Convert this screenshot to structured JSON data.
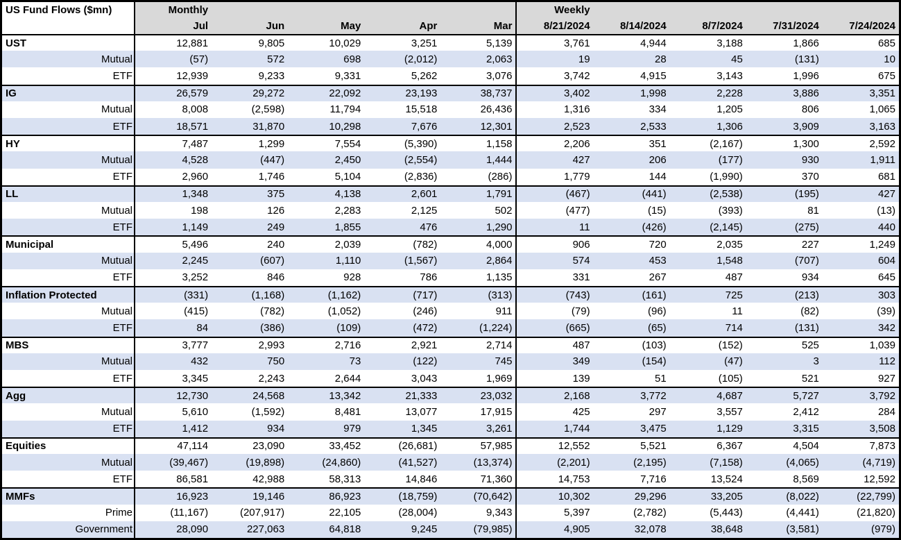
{
  "title": "US Fund Flows ($mn)",
  "colors": {
    "stripe": "#D9E1F2",
    "header_bg": "#D9D9D9",
    "border": "#000000"
  },
  "header": {
    "monthly_label": "Monthly",
    "weekly_label": "Weekly",
    "monthly_columns": [
      "Jul",
      "Jun",
      "May",
      "Apr",
      "Mar"
    ],
    "weekly_columns": [
      "8/21/2024",
      "8/14/2024",
      "8/7/2024",
      "7/31/2024",
      "7/24/2024"
    ]
  },
  "sections": [
    {
      "name": "UST",
      "rows": [
        {
          "label": "UST",
          "bold": true,
          "monthly": [
            "12,881",
            "9,805",
            "10,029",
            "3,251",
            "5,139"
          ],
          "weekly": [
            "3,761",
            "4,944",
            "3,188",
            "1,866",
            "685"
          ]
        },
        {
          "label": "Mutual",
          "bold": false,
          "monthly": [
            "(57)",
            "572",
            "698",
            "(2,012)",
            "2,063"
          ],
          "weekly": [
            "19",
            "28",
            "45",
            "(131)",
            "10"
          ]
        },
        {
          "label": "ETF",
          "bold": false,
          "monthly": [
            "12,939",
            "9,233",
            "9,331",
            "5,262",
            "3,076"
          ],
          "weekly": [
            "3,742",
            "4,915",
            "3,143",
            "1,996",
            "675"
          ]
        }
      ]
    },
    {
      "name": "IG",
      "rows": [
        {
          "label": "IG",
          "bold": true,
          "monthly": [
            "26,579",
            "29,272",
            "22,092",
            "23,193",
            "38,737"
          ],
          "weekly": [
            "3,402",
            "1,998",
            "2,228",
            "3,886",
            "3,351"
          ]
        },
        {
          "label": "Mutual",
          "bold": false,
          "monthly": [
            "8,008",
            "(2,598)",
            "11,794",
            "15,518",
            "26,436"
          ],
          "weekly": [
            "1,316",
            "334",
            "1,205",
            "806",
            "1,065"
          ]
        },
        {
          "label": "ETF",
          "bold": false,
          "monthly": [
            "18,571",
            "31,870",
            "10,298",
            "7,676",
            "12,301"
          ],
          "weekly": [
            "2,523",
            "2,533",
            "1,306",
            "3,909",
            "3,163"
          ]
        }
      ]
    },
    {
      "name": "HY",
      "rows": [
        {
          "label": "HY",
          "bold": true,
          "monthly": [
            "7,487",
            "1,299",
            "7,554",
            "(5,390)",
            "1,158"
          ],
          "weekly": [
            "2,206",
            "351",
            "(2,167)",
            "1,300",
            "2,592"
          ]
        },
        {
          "label": "Mutual",
          "bold": false,
          "monthly": [
            "4,528",
            "(447)",
            "2,450",
            "(2,554)",
            "1,444"
          ],
          "weekly": [
            "427",
            "206",
            "(177)",
            "930",
            "1,911"
          ]
        },
        {
          "label": "ETF",
          "bold": false,
          "monthly": [
            "2,960",
            "1,746",
            "5,104",
            "(2,836)",
            "(286)"
          ],
          "weekly": [
            "1,779",
            "144",
            "(1,990)",
            "370",
            "681"
          ]
        }
      ]
    },
    {
      "name": "LL",
      "rows": [
        {
          "label": "LL",
          "bold": true,
          "monthly": [
            "1,348",
            "375",
            "4,138",
            "2,601",
            "1,791"
          ],
          "weekly": [
            "(467)",
            "(441)",
            "(2,538)",
            "(195)",
            "427"
          ]
        },
        {
          "label": "Mutual",
          "bold": false,
          "monthly": [
            "198",
            "126",
            "2,283",
            "2,125",
            "502"
          ],
          "weekly": [
            "(477)",
            "(15)",
            "(393)",
            "81",
            "(13)"
          ]
        },
        {
          "label": "ETF",
          "bold": false,
          "monthly": [
            "1,149",
            "249",
            "1,855",
            "476",
            "1,290"
          ],
          "weekly": [
            "11",
            "(426)",
            "(2,145)",
            "(275)",
            "440"
          ]
        }
      ]
    },
    {
      "name": "Municipal",
      "rows": [
        {
          "label": "Municipal",
          "bold": true,
          "monthly": [
            "5,496",
            "240",
            "2,039",
            "(782)",
            "4,000"
          ],
          "weekly": [
            "906",
            "720",
            "2,035",
            "227",
            "1,249"
          ]
        },
        {
          "label": "Mutual",
          "bold": false,
          "monthly": [
            "2,245",
            "(607)",
            "1,110",
            "(1,567)",
            "2,864"
          ],
          "weekly": [
            "574",
            "453",
            "1,548",
            "(707)",
            "604"
          ]
        },
        {
          "label": "ETF",
          "bold": false,
          "monthly": [
            "3,252",
            "846",
            "928",
            "786",
            "1,135"
          ],
          "weekly": [
            "331",
            "267",
            "487",
            "934",
            "645"
          ]
        }
      ]
    },
    {
      "name": "Inflation Protected",
      "rows": [
        {
          "label": "Inflation Protected",
          "bold": true,
          "monthly": [
            "(331)",
            "(1,168)",
            "(1,162)",
            "(717)",
            "(313)"
          ],
          "weekly": [
            "(743)",
            "(161)",
            "725",
            "(213)",
            "303"
          ]
        },
        {
          "label": "Mutual",
          "bold": false,
          "monthly": [
            "(415)",
            "(782)",
            "(1,052)",
            "(246)",
            "911"
          ],
          "weekly": [
            "(79)",
            "(96)",
            "11",
            "(82)",
            "(39)"
          ]
        },
        {
          "label": "ETF",
          "bold": false,
          "monthly": [
            "84",
            "(386)",
            "(109)",
            "(472)",
            "(1,224)"
          ],
          "weekly": [
            "(665)",
            "(65)",
            "714",
            "(131)",
            "342"
          ]
        }
      ]
    },
    {
      "name": "MBS",
      "rows": [
        {
          "label": "MBS",
          "bold": true,
          "monthly": [
            "3,777",
            "2,993",
            "2,716",
            "2,921",
            "2,714"
          ],
          "weekly": [
            "487",
            "(103)",
            "(152)",
            "525",
            "1,039"
          ]
        },
        {
          "label": "Mutual",
          "bold": false,
          "monthly": [
            "432",
            "750",
            "73",
            "(122)",
            "745"
          ],
          "weekly": [
            "349",
            "(154)",
            "(47)",
            "3",
            "112"
          ]
        },
        {
          "label": "ETF",
          "bold": false,
          "monthly": [
            "3,345",
            "2,243",
            "2,644",
            "3,043",
            "1,969"
          ],
          "weekly": [
            "139",
            "51",
            "(105)",
            "521",
            "927"
          ]
        }
      ]
    },
    {
      "name": "Agg",
      "rows": [
        {
          "label": "Agg",
          "bold": true,
          "monthly": [
            "12,730",
            "24,568",
            "13,342",
            "21,333",
            "23,032"
          ],
          "weekly": [
            "2,168",
            "3,772",
            "4,687",
            "5,727",
            "3,792"
          ]
        },
        {
          "label": "Mutual",
          "bold": false,
          "monthly": [
            "5,610",
            "(1,592)",
            "8,481",
            "13,077",
            "17,915"
          ],
          "weekly": [
            "425",
            "297",
            "3,557",
            "2,412",
            "284"
          ]
        },
        {
          "label": "ETF",
          "bold": false,
          "monthly": [
            "1,412",
            "934",
            "979",
            "1,345",
            "3,261"
          ],
          "weekly": [
            "1,744",
            "3,475",
            "1,129",
            "3,315",
            "3,508"
          ]
        }
      ]
    },
    {
      "name": "Equities",
      "rows": [
        {
          "label": "Equities",
          "bold": true,
          "monthly": [
            "47,114",
            "23,090",
            "33,452",
            "(26,681)",
            "57,985"
          ],
          "weekly": [
            "12,552",
            "5,521",
            "6,367",
            "4,504",
            "7,873"
          ]
        },
        {
          "label": "Mutual",
          "bold": false,
          "monthly": [
            "(39,467)",
            "(19,898)",
            "(24,860)",
            "(41,527)",
            "(13,374)"
          ],
          "weekly": [
            "(2,201)",
            "(2,195)",
            "(7,158)",
            "(4,065)",
            "(4,719)"
          ]
        },
        {
          "label": "ETF",
          "bold": false,
          "monthly": [
            "86,581",
            "42,988",
            "58,313",
            "14,846",
            "71,360"
          ],
          "weekly": [
            "14,753",
            "7,716",
            "13,524",
            "8,569",
            "12,592"
          ]
        }
      ]
    },
    {
      "name": "MMFs",
      "rows": [
        {
          "label": "MMFs",
          "bold": true,
          "monthly": [
            "16,923",
            "19,146",
            "86,923",
            "(18,759)",
            "(70,642)"
          ],
          "weekly": [
            "10,302",
            "29,296",
            "33,205",
            "(8,022)",
            "(22,799)"
          ]
        },
        {
          "label": "Prime",
          "bold": false,
          "monthly": [
            "(11,167)",
            "(207,917)",
            "22,105",
            "(28,004)",
            "9,343"
          ],
          "weekly": [
            "5,397",
            "(2,782)",
            "(5,443)",
            "(4,441)",
            "(21,820)"
          ]
        },
        {
          "label": "Government",
          "bold": false,
          "monthly": [
            "28,090",
            "227,063",
            "64,818",
            "9,245",
            "(79,985)"
          ],
          "weekly": [
            "4,905",
            "32,078",
            "38,648",
            "(3,581)",
            "(979)"
          ]
        }
      ]
    }
  ]
}
